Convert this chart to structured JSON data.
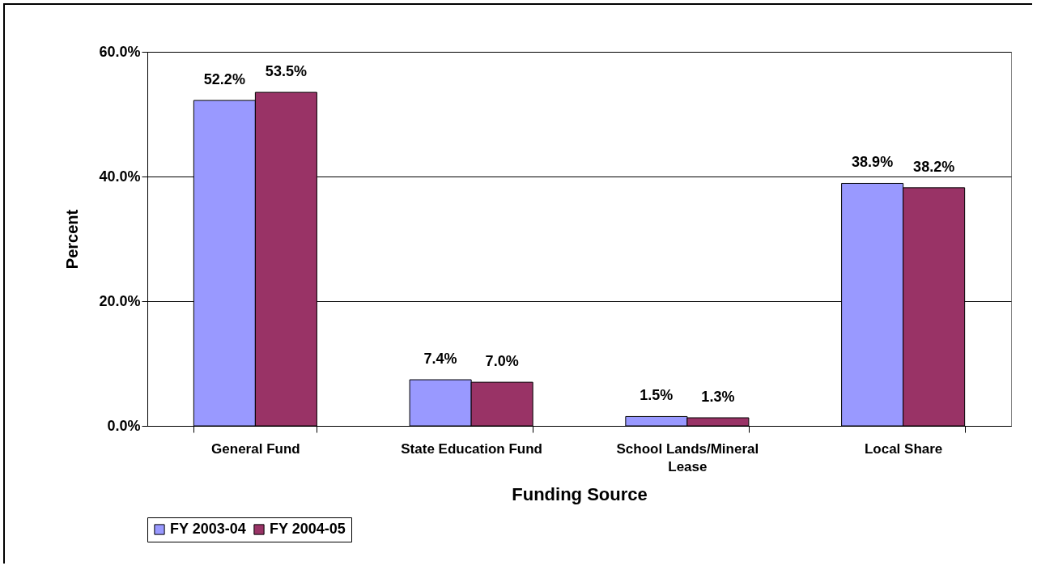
{
  "chart_data": {
    "type": "bar",
    "xlabel": "Funding Source",
    "ylabel": "Percent",
    "categories": [
      "General Fund",
      "State Education Fund",
      "School Lands/Mineral Lease",
      "Local Share"
    ],
    "series": [
      {
        "name": "FY 2003-04",
        "color": "#9999ff",
        "values": [
          52.2,
          7.4,
          1.5,
          38.9
        ],
        "value_labels": [
          "52.2%",
          "7.4%",
          "1.5%",
          "38.9%"
        ]
      },
      {
        "name": "FY 2004-05",
        "color": "#993366",
        "values": [
          53.5,
          7.0,
          1.3,
          38.2
        ],
        "value_labels": [
          "53.5%",
          "7.0%",
          "1.3%",
          "38.2%"
        ]
      }
    ],
    "ylim": [
      0,
      60
    ],
    "yticks": [
      {
        "value": 0,
        "label": "0.0%"
      },
      {
        "value": 20,
        "label": "20.0%"
      },
      {
        "value": 40,
        "label": "40.0%"
      },
      {
        "value": 60,
        "label": "60.0%"
      }
    ],
    "grid": "y",
    "legend": "bottom left"
  }
}
